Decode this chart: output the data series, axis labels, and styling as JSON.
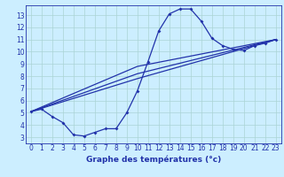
{
  "xlabel": "Graphe des températures (°c)",
  "background_color": "#cceeff",
  "line_color": "#2233aa",
  "xlim": [
    -0.5,
    23.5
  ],
  "ylim": [
    2.5,
    13.8
  ],
  "xticks": [
    0,
    1,
    2,
    3,
    4,
    5,
    6,
    7,
    8,
    9,
    10,
    11,
    12,
    13,
    14,
    15,
    16,
    17,
    18,
    19,
    20,
    21,
    22,
    23
  ],
  "yticks": [
    3,
    4,
    5,
    6,
    7,
    8,
    9,
    10,
    11,
    12,
    13
  ],
  "main_series": {
    "x": [
      0,
      1,
      2,
      3,
      4,
      5,
      6,
      7,
      8,
      9,
      10,
      11,
      12,
      13,
      14,
      15,
      16,
      17,
      18,
      19,
      20,
      21,
      22,
      23
    ],
    "y": [
      5.1,
      5.3,
      4.7,
      4.2,
      3.2,
      3.1,
      3.4,
      3.7,
      3.7,
      5.0,
      6.8,
      9.2,
      11.7,
      13.1,
      13.5,
      13.5,
      12.5,
      11.1,
      10.5,
      10.2,
      10.1,
      10.5,
      10.7,
      11.0
    ]
  },
  "trend_lines": [
    {
      "x": [
        0,
        10,
        23
      ],
      "y": [
        5.1,
        7.8,
        11.0
      ]
    },
    {
      "x": [
        0,
        10,
        23
      ],
      "y": [
        5.1,
        8.2,
        11.0
      ]
    },
    {
      "x": [
        0,
        10,
        23
      ],
      "y": [
        5.1,
        8.8,
        11.0
      ]
    }
  ],
  "grid_color": "#aad4d4",
  "marker": "D",
  "markersize": 2.0,
  "linewidth": 0.9,
  "tick_fontsize": 5.5,
  "xlabel_fontsize": 6.5
}
